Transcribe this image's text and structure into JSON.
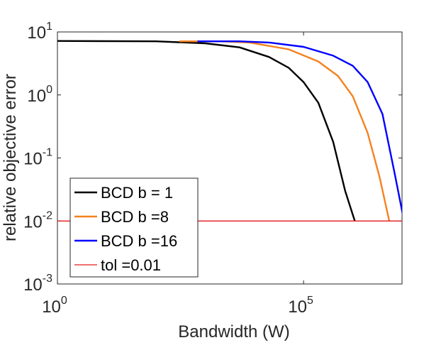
{
  "chart_data": {
    "type": "line",
    "xlabel": "Bandwidth (W)",
    "ylabel": "relative objective error",
    "xscale": "log",
    "yscale": "log",
    "xlim": [
      1,
      10000000
    ],
    "ylim": [
      0.001,
      10
    ],
    "grid": false,
    "legend_position": "bottom-left",
    "x_ticks": [
      {
        "value": 1,
        "base": "10",
        "exp": "0"
      },
      {
        "value": 100000,
        "base": "10",
        "exp": "5"
      }
    ],
    "y_ticks": [
      {
        "value": 10,
        "base": "10",
        "exp": "1"
      },
      {
        "value": 1,
        "base": "10",
        "exp": "0"
      },
      {
        "value": 0.1,
        "base": "10",
        "exp": "-1"
      },
      {
        "value": 0.01,
        "base": "10",
        "exp": "-2"
      },
      {
        "value": 0.001,
        "base": "10",
        "exp": "-3"
      }
    ],
    "series": [
      {
        "name": "BCD b = 1",
        "color": "#000000",
        "points": [
          [
            1,
            7.2
          ],
          [
            100,
            7.1
          ],
          [
            1000,
            6.6
          ],
          [
            5000,
            5.7
          ],
          [
            20000,
            4.0
          ],
          [
            50000,
            2.7
          ],
          [
            100000,
            1.6
          ],
          [
            200000,
            0.75
          ],
          [
            400000,
            0.18
          ],
          [
            700000,
            0.03
          ],
          [
            1100000,
            0.01
          ]
        ]
      },
      {
        "name": "BCD b =8",
        "color": "#F5821F",
        "points": [
          [
            300,
            7.1
          ],
          [
            2000,
            7.1
          ],
          [
            8000,
            6.8
          ],
          [
            50000,
            5.3
          ],
          [
            200000,
            3.4
          ],
          [
            500000,
            2.0
          ],
          [
            1000000,
            0.95
          ],
          [
            2000000,
            0.25
          ],
          [
            3500000,
            0.05
          ],
          [
            5500000,
            0.01
          ]
        ]
      },
      {
        "name": "BCD b =16",
        "color": "#0000FF",
        "points": [
          [
            700,
            7.1
          ],
          [
            5000,
            7.1
          ],
          [
            20000,
            6.8
          ],
          [
            100000,
            5.8
          ],
          [
            400000,
            4.2
          ],
          [
            1000000,
            2.9
          ],
          [
            2000000,
            1.6
          ],
          [
            4000000,
            0.5
          ],
          [
            7000000,
            0.06
          ],
          [
            11000000,
            0.01
          ]
        ]
      },
      {
        "name": "tol =0.01",
        "color": "#E31A1C",
        "points": [
          [
            1,
            0.01
          ],
          [
            100000000,
            0.01
          ]
        ]
      }
    ]
  }
}
